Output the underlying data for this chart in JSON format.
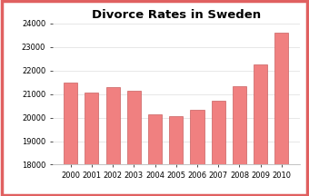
{
  "categories": [
    "2000",
    "2001",
    "2002",
    "2003",
    "2004",
    "2005",
    "2006",
    "2007",
    "2008",
    "2009",
    "2010"
  ],
  "values": [
    21500,
    21050,
    21300,
    21150,
    20150,
    20050,
    20350,
    20700,
    21350,
    22250,
    23600
  ],
  "bar_color": "#F08080",
  "bar_edge_color": "#C86060",
  "title": "Divorce Rates in Sweden",
  "title_fontsize": 9.5,
  "title_fontweight": "bold",
  "ylim": [
    18000,
    24000
  ],
  "yticks": [
    18000,
    19000,
    20000,
    21000,
    22000,
    23000,
    24000
  ],
  "background_color": "#ffffff",
  "border_color": "#E06060",
  "border_linewidth": 2.5,
  "tick_fontsize": 6.0
}
